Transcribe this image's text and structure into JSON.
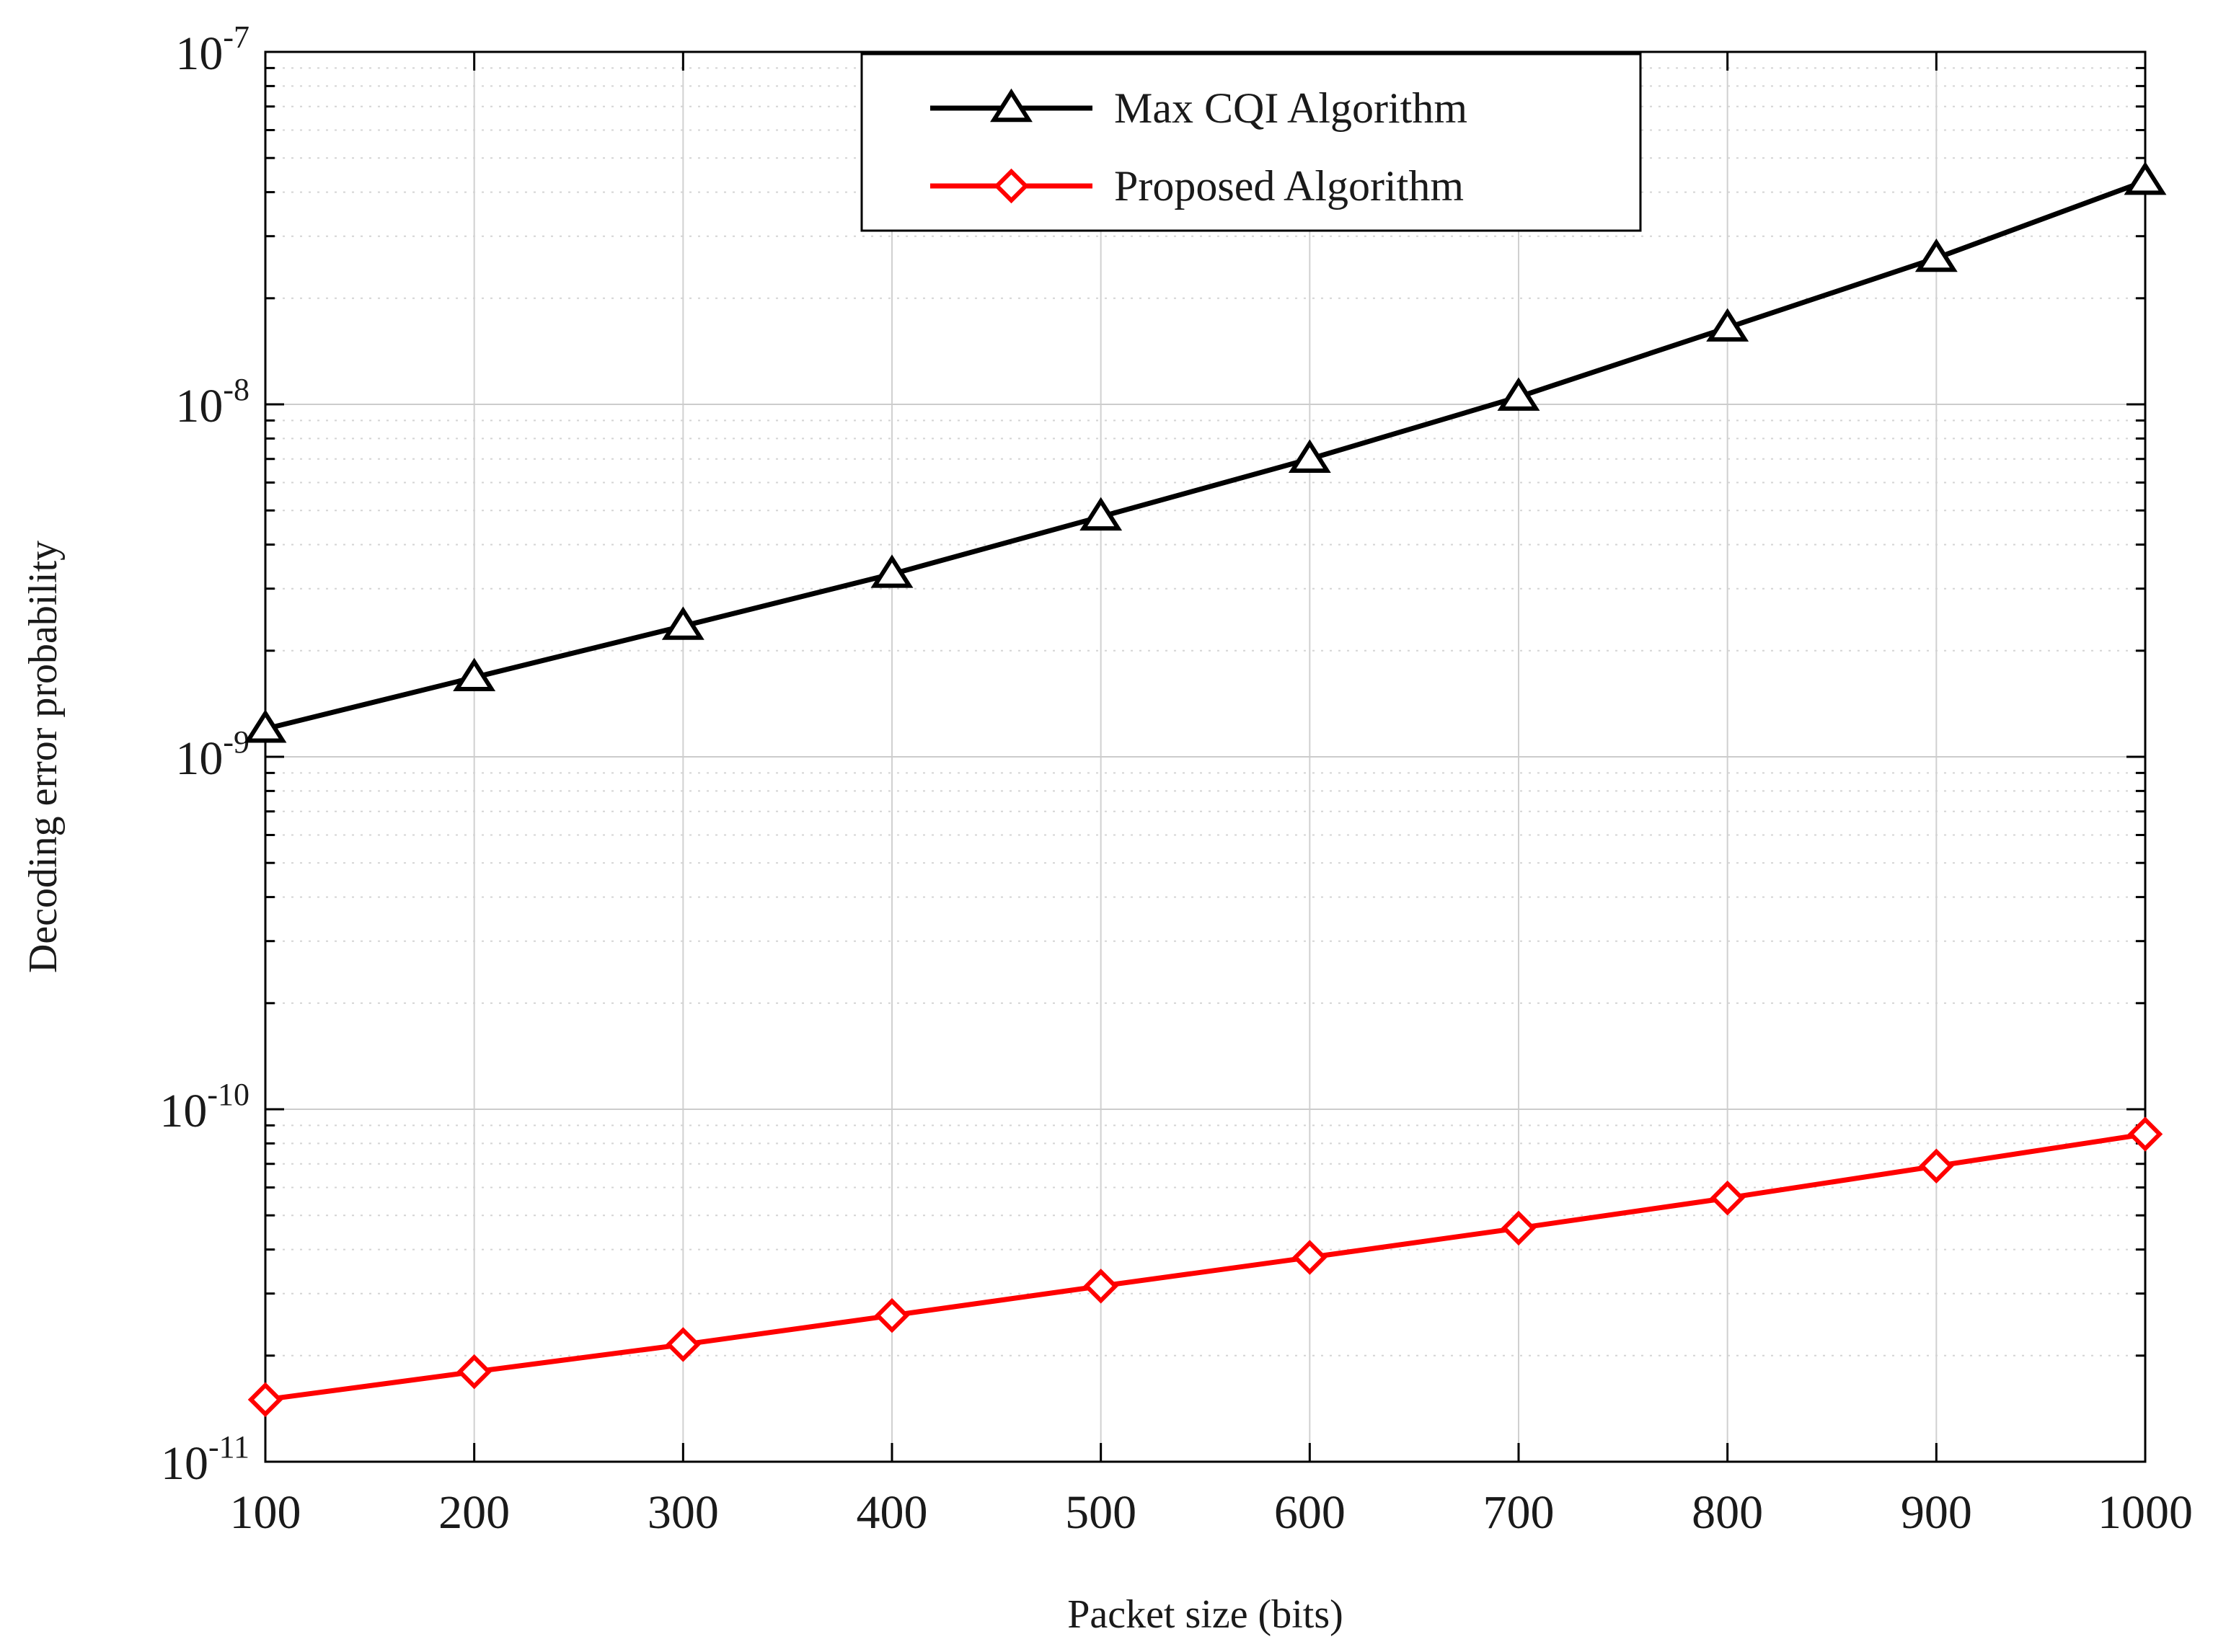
{
  "chart_data": {
    "type": "line",
    "title": "",
    "xlabel": "Packet size (bits)",
    "ylabel": "Decoding error probability",
    "x": [
      100,
      200,
      300,
      400,
      500,
      600,
      700,
      800,
      900,
      1000
    ],
    "xlim": [
      100,
      1000
    ],
    "xticks": [
      "100",
      "200",
      "300",
      "400",
      "500",
      "600",
      "700",
      "800",
      "900",
      "1000"
    ],
    "yscale": "log",
    "ylim": [
      1e-11,
      1e-07
    ],
    "yticks": [
      {
        "base": "10",
        "exp": "-11",
        "value": 1e-11
      },
      {
        "base": "10",
        "exp": "-10",
        "value": 1e-10
      },
      {
        "base": "10",
        "exp": "-9",
        "value": 1e-09
      },
      {
        "base": "10",
        "exp": "-8",
        "value": 1e-08
      },
      {
        "base": "10",
        "exp": "-7",
        "value": 1e-07
      }
    ],
    "grid": true,
    "legend_position": "top-right",
    "series": [
      {
        "name": "Max CQI Algorithm",
        "color": "#000000",
        "marker": "triangle",
        "values": [
          1.2e-09,
          1.68e-09,
          2.35e-09,
          3.3e-09,
          4.8e-09,
          7e-09,
          1.05e-08,
          1.65e-08,
          2.6e-08,
          4.3e-08
        ]
      },
      {
        "name": "Proposed Algorithm",
        "color": "#ff0000",
        "marker": "diamond",
        "values": [
          1.5e-11,
          1.8e-11,
          2.15e-11,
          2.6e-11,
          3.15e-11,
          3.8e-11,
          4.6e-11,
          5.6e-11,
          6.9e-11,
          8.5e-11
        ]
      }
    ]
  }
}
